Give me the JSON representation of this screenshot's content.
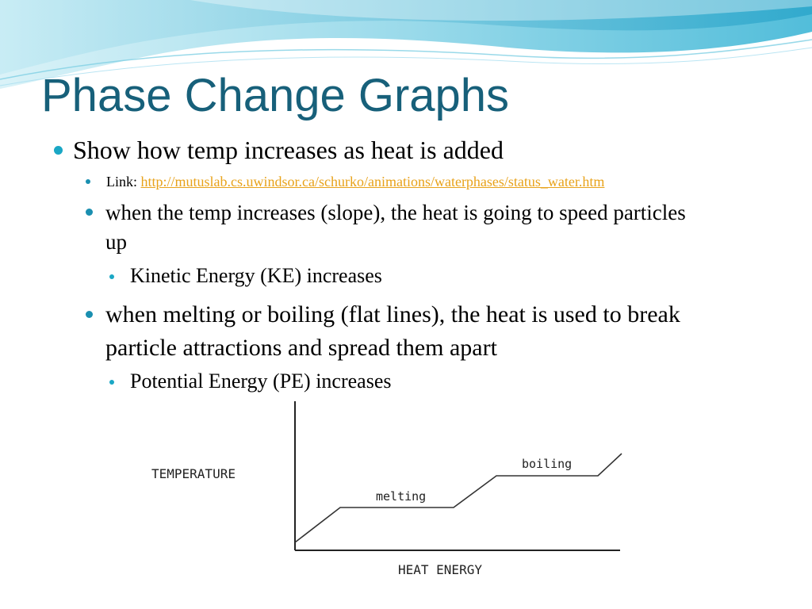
{
  "slide": {
    "title": "Phase Change Graphs",
    "bullets": {
      "main": "Show how temp increases as heat is added",
      "link_prefix": "Link:",
      "link_url": "http://mutuslab.cs.uwindsor.ca/schurko/animations/waterphases/status_water.htm",
      "slope_point": "when the temp increases (slope), the heat is going to speed particles up",
      "ke_point": "Kinetic Energy (KE) increases",
      "flat_point": "when melting or boiling (flat lines), the heat is used to break particle attractions and spread them apart",
      "pe_point": "Potential Energy (PE) increases"
    }
  },
  "graph": {
    "y_label": "TEMPERATURE",
    "x_label": "HEAT ENERGY",
    "melting_label": "melting",
    "boiling_label": "boiling"
  },
  "theme": {
    "title_color": "#17607a",
    "bullet_color": "#1aa7c5",
    "link_color": "#e8a21a"
  }
}
